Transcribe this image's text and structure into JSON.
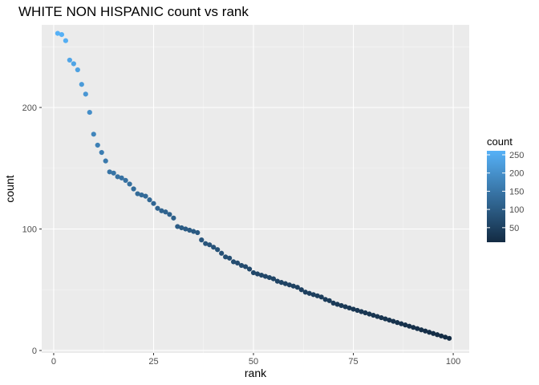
{
  "chart_data": {
    "type": "scatter",
    "title": "WHITE NON HISPANIC count vs rank",
    "xlabel": "rank",
    "ylabel": "count",
    "xlim": [
      -3,
      104
    ],
    "ylim": [
      -2,
      268
    ],
    "x_ticks": [
      0,
      25,
      50,
      75,
      100
    ],
    "x_tick_labels": [
      "0",
      "25",
      "50",
      "75",
      "100"
    ],
    "y_ticks": [
      0,
      100,
      200
    ],
    "y_tick_labels": [
      "0",
      "100",
      "200"
    ],
    "grid": true,
    "legend": {
      "title": "count",
      "position": "right",
      "type": "colorbar",
      "min": 10,
      "max": 261,
      "breaks": [
        50,
        100,
        150,
        200,
        250
      ],
      "labels": [
        "50",
        "100",
        "150",
        "200",
        "250"
      ],
      "low_color": "#132b43",
      "high_color": "#56b1f7"
    },
    "series": [
      {
        "x": [
          1,
          2,
          3,
          4,
          5,
          6,
          7,
          8,
          9,
          10,
          11,
          12,
          13,
          14,
          15,
          16,
          17,
          18,
          19,
          20,
          21,
          22,
          23,
          24,
          25,
          26,
          27,
          28,
          29,
          30,
          31,
          32,
          33,
          34,
          35,
          36,
          37,
          38,
          39,
          40,
          41,
          42,
          43,
          44,
          45,
          46,
          47,
          48,
          49,
          50,
          51,
          52,
          53,
          54,
          55,
          56,
          57,
          58,
          59,
          60,
          61,
          62,
          63,
          64,
          65,
          66,
          67,
          68,
          69,
          70,
          71,
          72,
          73,
          74,
          75,
          76,
          77,
          78,
          79,
          80,
          81,
          82,
          83,
          84,
          85,
          86,
          87,
          88,
          89,
          90,
          91,
          92,
          93,
          94,
          95,
          96,
          97,
          98,
          99
        ],
        "y": [
          261,
          260,
          255,
          239,
          236,
          231,
          219,
          211,
          196,
          178,
          169,
          163,
          156,
          147,
          146,
          143,
          142,
          140,
          137,
          133,
          129,
          128,
          127,
          124,
          121,
          117,
          115,
          114,
          112,
          109,
          102,
          101,
          100,
          99,
          98,
          97,
          91,
          88,
          87,
          85,
          83,
          80,
          77,
          76,
          73,
          72,
          70,
          69,
          67,
          64,
          63,
          62,
          61,
          60,
          59,
          57,
          56,
          55,
          54,
          53,
          52,
          50,
          48,
          47,
          46,
          45,
          44,
          42,
          41,
          39,
          38,
          37,
          36,
          35,
          34,
          33,
          32,
          31,
          30,
          29,
          28,
          27,
          26,
          25,
          24,
          23,
          22,
          21,
          20,
          19,
          18,
          17,
          16,
          15,
          14,
          13,
          12,
          11,
          10
        ]
      }
    ]
  }
}
